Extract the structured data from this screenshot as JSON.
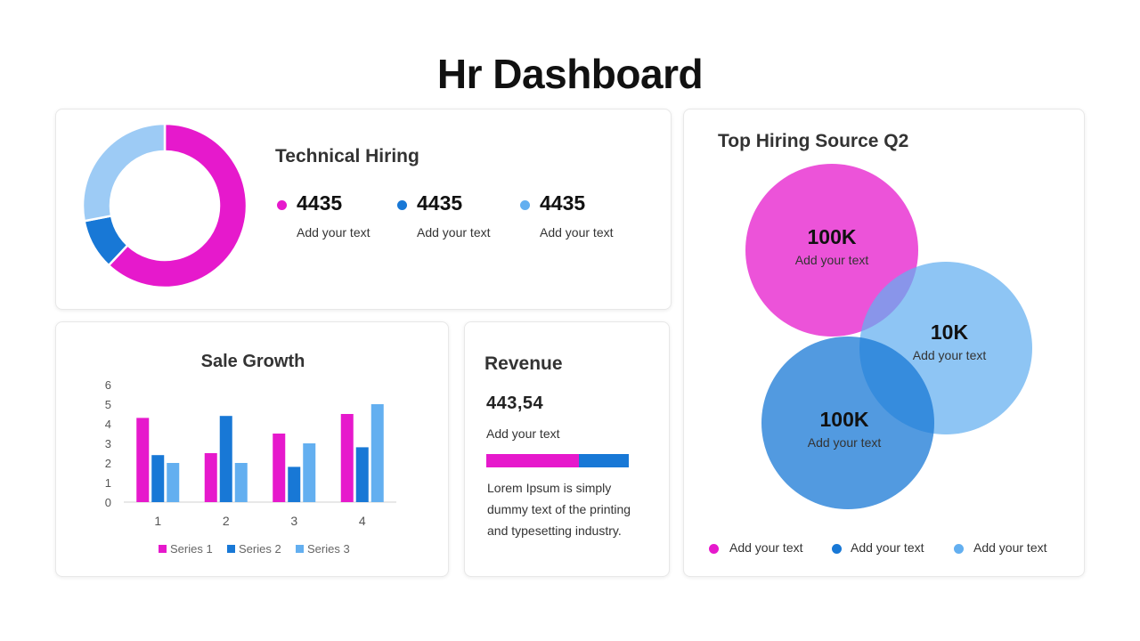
{
  "page": {
    "title": "Hr Dashboard"
  },
  "colors": {
    "magenta": "#E619CC",
    "blue": "#1878D6",
    "light_blue": "#63AFF0"
  },
  "technical_hiring": {
    "title": "Technical Hiring",
    "stats": [
      {
        "value": "4435",
        "label": "Add your text",
        "color": "#E619CC"
      },
      {
        "value": "4435",
        "label": "Add your text",
        "color": "#1878D6"
      },
      {
        "value": "4435",
        "label": "Add your text",
        "color": "#63AFF0"
      }
    ]
  },
  "revenue": {
    "title": "Revenue",
    "value": "443,54",
    "label": "Add your text",
    "bar_split": [
      0.65,
      0.35
    ],
    "body": "Lorem Ipsum is simply dummy text of the printing and typesetting industry."
  },
  "hiring_source": {
    "title": "Top Hiring Source  Q2",
    "circles": [
      {
        "value": "100K",
        "label": "Add your text",
        "color": "#E619CC"
      },
      {
        "value": "10K",
        "label": "Add your text",
        "color": "#63AFF0"
      },
      {
        "value": "100K",
        "label": "Add your text",
        "color": "#1878D6"
      }
    ],
    "legend": [
      {
        "label": "Add your text",
        "color": "#E619CC"
      },
      {
        "label": "Add your text",
        "color": "#1878D6"
      },
      {
        "label": "Add your text",
        "color": "#63AFF0"
      }
    ]
  },
  "chart_data": [
    {
      "type": "pie",
      "donut": true,
      "values": [
        62,
        10,
        28
      ],
      "colors": [
        "#E619CC",
        "#1878D6",
        "#9DCBF5"
      ]
    },
    {
      "type": "bar",
      "title": "Sale Growth",
      "categories": [
        "1",
        "2",
        "3",
        "4"
      ],
      "series": [
        {
          "name": "Series 1",
          "values": [
            4.3,
            2.5,
            3.5,
            4.5
          ],
          "color": "#E619CC"
        },
        {
          "name": "Series 2",
          "values": [
            2.4,
            4.4,
            1.8,
            2.8
          ],
          "color": "#1878D6"
        },
        {
          "name": "Series 3",
          "values": [
            2,
            2,
            3,
            5
          ],
          "color": "#63AFF0"
        }
      ],
      "yticks": [
        "0",
        "1",
        "2",
        "3",
        "4",
        "5",
        "6"
      ],
      "ylim": [
        0,
        6
      ],
      "grid": false,
      "legend": "bottom"
    }
  ]
}
